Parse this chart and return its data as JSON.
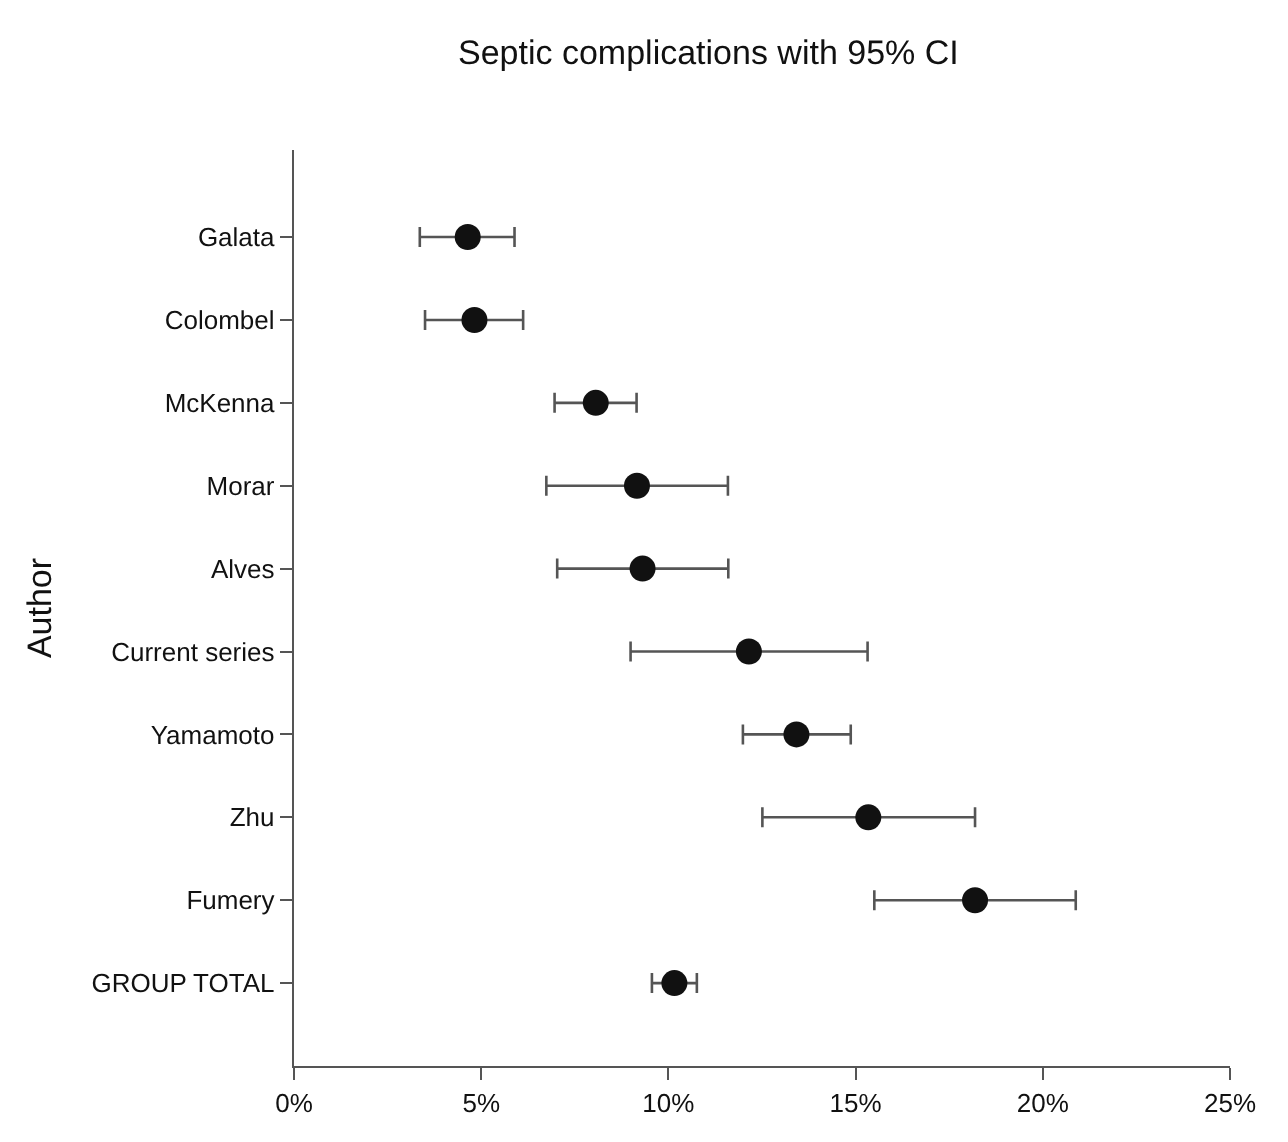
{
  "chart_data": {
    "type": "scatter",
    "orientation": "horizontal",
    "title": "Septic complications with 95% CI",
    "ylabel": "Author",
    "categories": [
      "Galata",
      "Colombel",
      "McKenna",
      "Morar",
      "Alves",
      "Current series",
      "Yamamoto",
      "Zhu",
      "Fumery",
      "GROUP TOTAL"
    ],
    "values": [
      4.64,
      4.82,
      8.06,
      9.16,
      9.31,
      12.15,
      13.42,
      15.34,
      18.19,
      10.16
    ],
    "errors": [
      [
        3.36,
        5.89
      ],
      [
        3.5,
        6.12
      ],
      [
        6.96,
        9.15
      ],
      [
        6.74,
        11.59
      ],
      [
        7.03,
        11.6
      ],
      [
        8.99,
        15.32
      ],
      [
        11.99,
        14.87
      ],
      [
        12.51,
        18.19
      ],
      [
        15.5,
        20.88
      ],
      [
        9.56,
        10.76
      ]
    ],
    "color": "#111111",
    "marker": "circle",
    "xlim": [
      0,
      25
    ],
    "xticks": [
      {
        "value": 0,
        "label": "0%"
      },
      {
        "value": 5,
        "label": "5%"
      },
      {
        "value": 10,
        "label": "10%"
      },
      {
        "value": 15,
        "label": "15%"
      },
      {
        "value": 20,
        "label": "20%"
      },
      {
        "value": 25,
        "label": "25%"
      }
    ],
    "legend": false
  }
}
